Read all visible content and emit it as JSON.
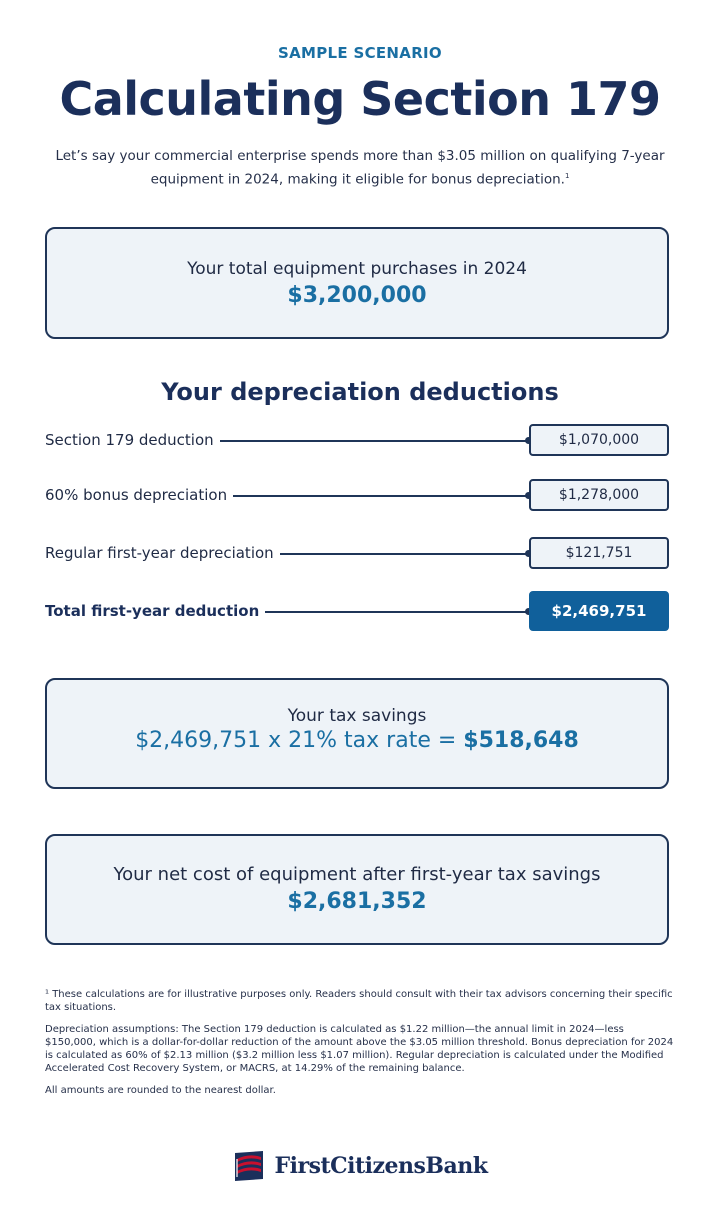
{
  "header": {
    "eyebrow": "SAMPLE SCENARIO",
    "title": "Calculating Section 179",
    "intro": "Let’s say your commercial enterprise spends more than $3.05 million on qualifying 7-year equipment in 2024, making it eligible for bonus depreciation.",
    "intro_footnote_marker": "1"
  },
  "purchases": {
    "label": "Your total equipment purchases in 2024",
    "amount": "$3,200,000"
  },
  "deductions": {
    "title": "Your depreciation deductions",
    "rows": [
      {
        "label": "Section 179 deduction",
        "value": "$1,070,000"
      },
      {
        "label": "60% bonus depreciation",
        "value": "$1,278,000"
      },
      {
        "label": "Regular first-year depreciation",
        "value": "$121,751"
      },
      {
        "label": "Total first-year deduction",
        "value": "$2,469,751"
      }
    ]
  },
  "savings": {
    "label": "Your tax savings",
    "equation_prefix": "$2,469,751 x 21% tax rate = ",
    "equation_result": "$518,648"
  },
  "net_cost": {
    "label": "Your net cost of equipment after first-year tax savings",
    "amount": "$2,681,352"
  },
  "footnotes": {
    "note1": "¹ These calculations are for illustrative purposes only. Readers should consult with their tax advisors concerning their specific tax situations.",
    "note2": "Depreciation assumptions: The Section 179 deduction is calculated as $1.22 million—the annual limit in 2024—less $150,000, which is a dollar-for-dollar reduction of the amount above the $3.05 million threshold. Bonus depreciation for 2024 is calculated as 60% of $2.13 million ($3.2 million less $1.07 million). Regular depreciation is calculated under the Modified Accelerated Cost Recovery System, or MACRS, at 14.29% of the remaining balance.",
    "note3": "All amounts are rounded to the nearest dollar."
  },
  "brand": {
    "name": "FirstCitizensBank",
    "logo_icon": "flag-logo-icon",
    "colors": {
      "navy": "#1b2f5b",
      "blue": "#1a6fa3",
      "red": "#c8102e"
    }
  }
}
